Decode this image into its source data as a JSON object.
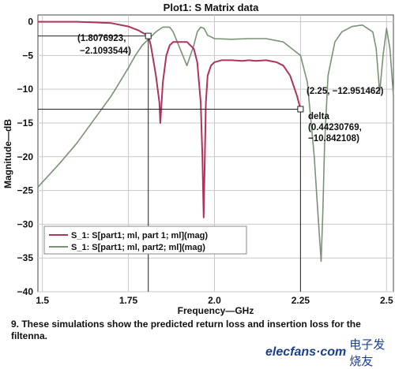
{
  "chart_data": {
    "type": "line",
    "title": "Plot1: S Matrix data",
    "xlabel": "Frequency—GHz",
    "ylabel": "Magnitude—dB",
    "xlim": [
      1.487,
      2.52
    ],
    "ylim": [
      -40,
      1
    ],
    "xticks": [
      1.5,
      1.75,
      2.0,
      2.25,
      2.5
    ],
    "xtick_labels": [
      "1.5",
      "1.75",
      "2.0",
      "2.25",
      "2.5"
    ],
    "yticks": [
      0,
      -5,
      -10,
      -15,
      -20,
      -25,
      -30,
      -35,
      -40
    ],
    "ytick_labels": [
      "0",
      "−5",
      "−10",
      "−15",
      "−20",
      "−25",
      "−30",
      "−35",
      "−40"
    ],
    "grid": true,
    "legend_position": "lower-left",
    "series": [
      {
        "name": "S_1: S[part1; ml, part 1; ml](mag)",
        "color": "#b0325e",
        "x": [
          1.487,
          1.55,
          1.6,
          1.65,
          1.7,
          1.75,
          1.78,
          1.8077,
          1.81,
          1.815,
          1.82,
          1.83,
          1.835,
          1.84,
          1.8425,
          1.845,
          1.85,
          1.86,
          1.87,
          1.88,
          1.9,
          1.92,
          1.94,
          1.95,
          1.96,
          1.965,
          1.9685,
          1.972,
          1.975,
          1.98,
          1.99,
          2.0,
          2.02,
          2.05,
          2.08,
          2.1,
          2.12,
          2.15,
          2.18,
          2.2,
          2.22,
          2.24,
          2.25
        ],
        "y": [
          0,
          0,
          0,
          -0.1,
          -0.2,
          -0.7,
          -1.3,
          -2.11,
          -2.5,
          -3.5,
          -5,
          -8,
          -10,
          -12,
          -15,
          -13,
          -9,
          -5,
          -3.5,
          -3,
          -3,
          -3,
          -4,
          -6,
          -12,
          -20,
          -29,
          -20,
          -12,
          -8,
          -6.5,
          -6,
          -5.7,
          -5.7,
          -5.8,
          -5.7,
          -5.8,
          -5.7,
          -6,
          -6.5,
          -8,
          -11,
          -12.95
        ]
      },
      {
        "name": "S_1: S[part1; ml, part2; ml](mag)",
        "color": "#7a9276",
        "x": [
          1.487,
          1.55,
          1.6,
          1.65,
          1.7,
          1.73,
          1.75,
          1.77,
          1.79,
          1.81,
          1.83,
          1.85,
          1.87,
          1.88,
          1.9,
          1.92,
          1.94,
          1.95,
          1.96,
          1.97,
          1.98,
          2.0,
          2.05,
          2.1,
          2.15,
          2.2,
          2.25,
          2.27,
          2.29,
          2.3,
          2.31,
          2.315,
          2.32,
          2.33,
          2.35,
          2.37,
          2.4,
          2.43,
          2.46,
          2.47,
          2.48,
          2.49,
          2.5,
          2.51,
          2.52
        ],
        "y": [
          -24.5,
          -21,
          -18,
          -14.5,
          -11,
          -8.5,
          -6.8,
          -5,
          -3.5,
          -2.5,
          -1.5,
          -0.8,
          -0.8,
          -1.5,
          -4,
          -6.5,
          -3.5,
          -1.5,
          -0.8,
          -1,
          -2,
          -2.5,
          -2.6,
          -2.5,
          -2.5,
          -3,
          -5,
          -9,
          -20,
          -28,
          -35.5,
          -28,
          -18,
          -8,
          -3,
          -1.5,
          -0.7,
          -0.5,
          -1.5,
          -4,
          -10.5,
          -5,
          -1,
          -4,
          -11
        ]
      }
    ],
    "markers": [
      {
        "x": 1.8076923,
        "y": -2.1093544,
        "label_line1": "(1.8076923,",
        "label_line2": "−2.1093544)"
      },
      {
        "x": 2.25,
        "y": -12.951462,
        "label_line1": "(2.25, −12.951462)"
      }
    ],
    "delta": {
      "label": "delta",
      "line1": "(0.44230769,",
      "line2": "−10.842108)"
    }
  },
  "caption": "9. These simulations show the predicted return loss and insertion loss for the filtenna.",
  "logo": {
    "text": "elecfans·com",
    "cn": "电子发烧友"
  }
}
